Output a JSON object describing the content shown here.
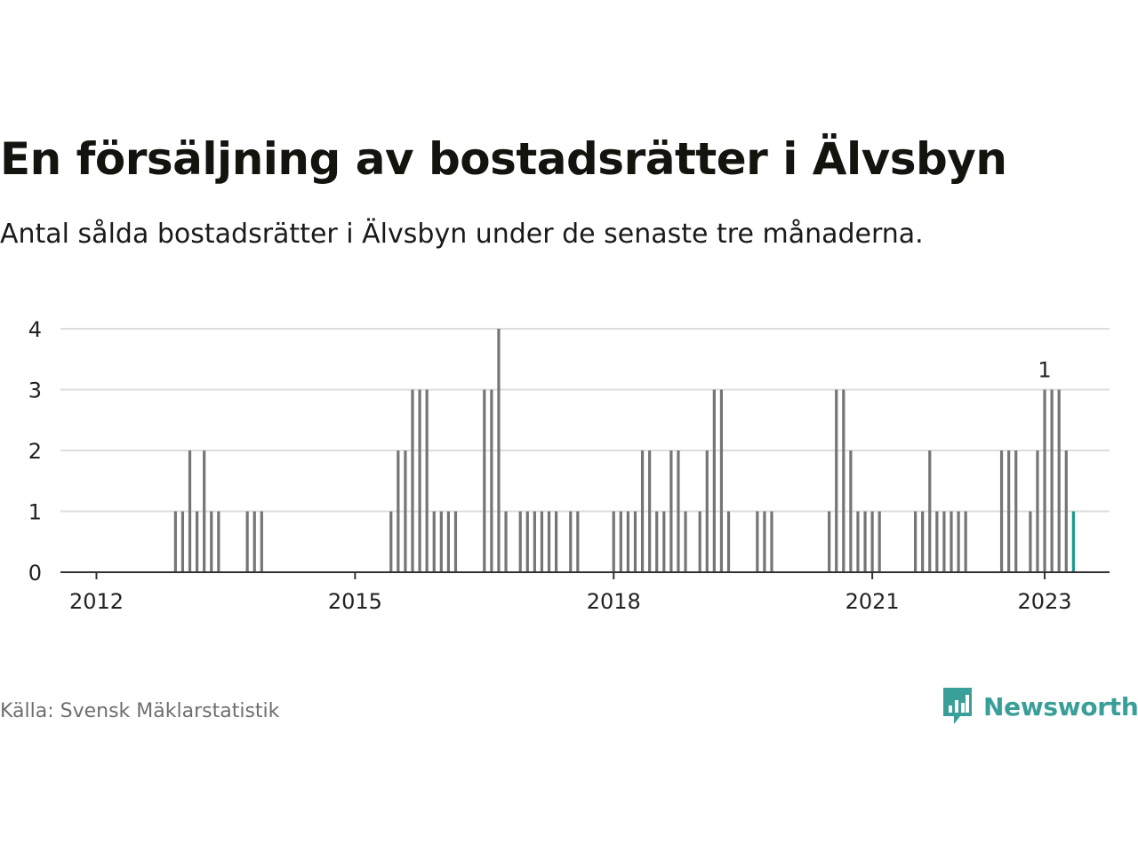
{
  "title": "En försäljning av bostadsrätter i Älvsbyn",
  "subtitle": "Antal sålda bostadsrätter i Älvsbyn under de senaste tre månaderna.",
  "source": "Källa: Svensk Mäklarstatistik",
  "brand": {
    "name": "Newsworthy",
    "icon": "newsworthy-logo-icon"
  },
  "colors": {
    "bar": "#757575",
    "highlight": "#1a9a8e",
    "grid": "#dddddd",
    "axis": "#333333",
    "brand": "#3a9f98"
  },
  "chart_data": {
    "type": "bar",
    "x_start": "2011-07",
    "x_label_months": [
      "2012-01",
      "2015-01",
      "2018-01",
      "2021-01",
      "2023-01"
    ],
    "xticks": [
      "2012",
      "2015",
      "2018",
      "2021",
      "2023"
    ],
    "yticks": [
      0,
      1,
      2,
      3,
      4
    ],
    "ylim": [
      0,
      4
    ],
    "grid": true,
    "annotation": {
      "label": "1",
      "month": "2023-01"
    },
    "values": [
      0,
      0,
      0,
      0,
      0,
      0,
      0,
      0,
      0,
      0,
      0,
      0,
      0,
      0,
      0,
      0,
      0,
      1,
      1,
      2,
      1,
      2,
      1,
      1,
      0,
      0,
      0,
      1,
      1,
      1,
      0,
      0,
      0,
      0,
      0,
      0,
      0,
      0,
      0,
      0,
      0,
      0,
      0,
      0,
      0,
      0,
      0,
      1,
      2,
      2,
      3,
      3,
      3,
      1,
      1,
      1,
      1,
      0,
      0,
      0,
      3,
      3,
      4,
      1,
      0,
      1,
      1,
      1,
      1,
      1,
      1,
      0,
      1,
      1,
      0,
      0,
      0,
      0,
      1,
      1,
      1,
      1,
      2,
      2,
      1,
      1,
      2,
      2,
      1,
      0,
      1,
      2,
      3,
      3,
      1,
      0,
      0,
      0,
      1,
      1,
      1,
      0,
      0,
      0,
      0,
      0,
      0,
      0,
      1,
      3,
      3,
      2,
      1,
      1,
      1,
      1,
      0,
      0,
      0,
      0,
      1,
      1,
      2,
      1,
      1,
      1,
      1,
      1,
      0,
      0,
      0,
      0,
      2,
      2,
      2,
      0,
      1,
      2,
      3,
      3,
      3,
      2,
      1
    ]
  }
}
